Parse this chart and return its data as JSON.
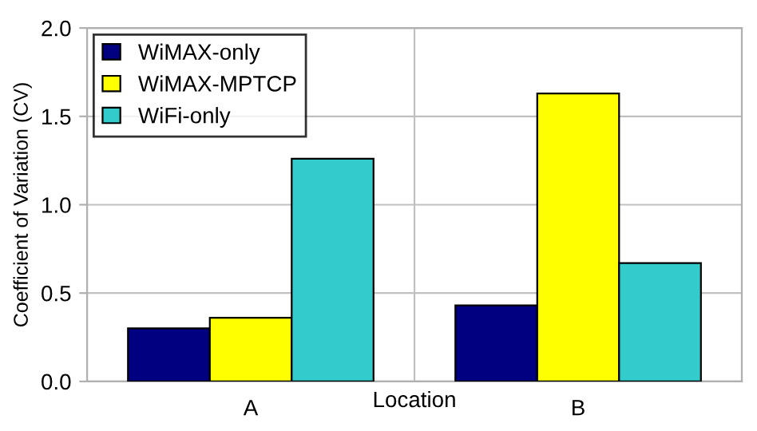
{
  "chart_data": {
    "type": "bar",
    "xlabel": "Location",
    "ylabel": "Coefficient of Variation (CV)",
    "categories": [
      "A",
      "B"
    ],
    "series": [
      {
        "name": "WiMAX-only",
        "color": "#000080",
        "values": [
          0.3,
          0.43
        ]
      },
      {
        "name": "WiMAX-MPTCP",
        "color": "#ffff00",
        "values": [
          0.36,
          1.63
        ]
      },
      {
        "name": "WiFi-only",
        "color": "#33cccc",
        "values": [
          1.26,
          0.67
        ]
      }
    ],
    "ylim": [
      0,
      2.0
    ],
    "yticks": [
      {
        "value": 0,
        "label": "0.0"
      },
      {
        "value": 0.5,
        "label": "0.5"
      },
      {
        "value": 1.0,
        "label": "1.0"
      },
      {
        "value": 1.5,
        "label": "1.5"
      },
      {
        "value": 2.0,
        "label": "2.0"
      }
    ],
    "grid": true,
    "legend": "top left"
  }
}
